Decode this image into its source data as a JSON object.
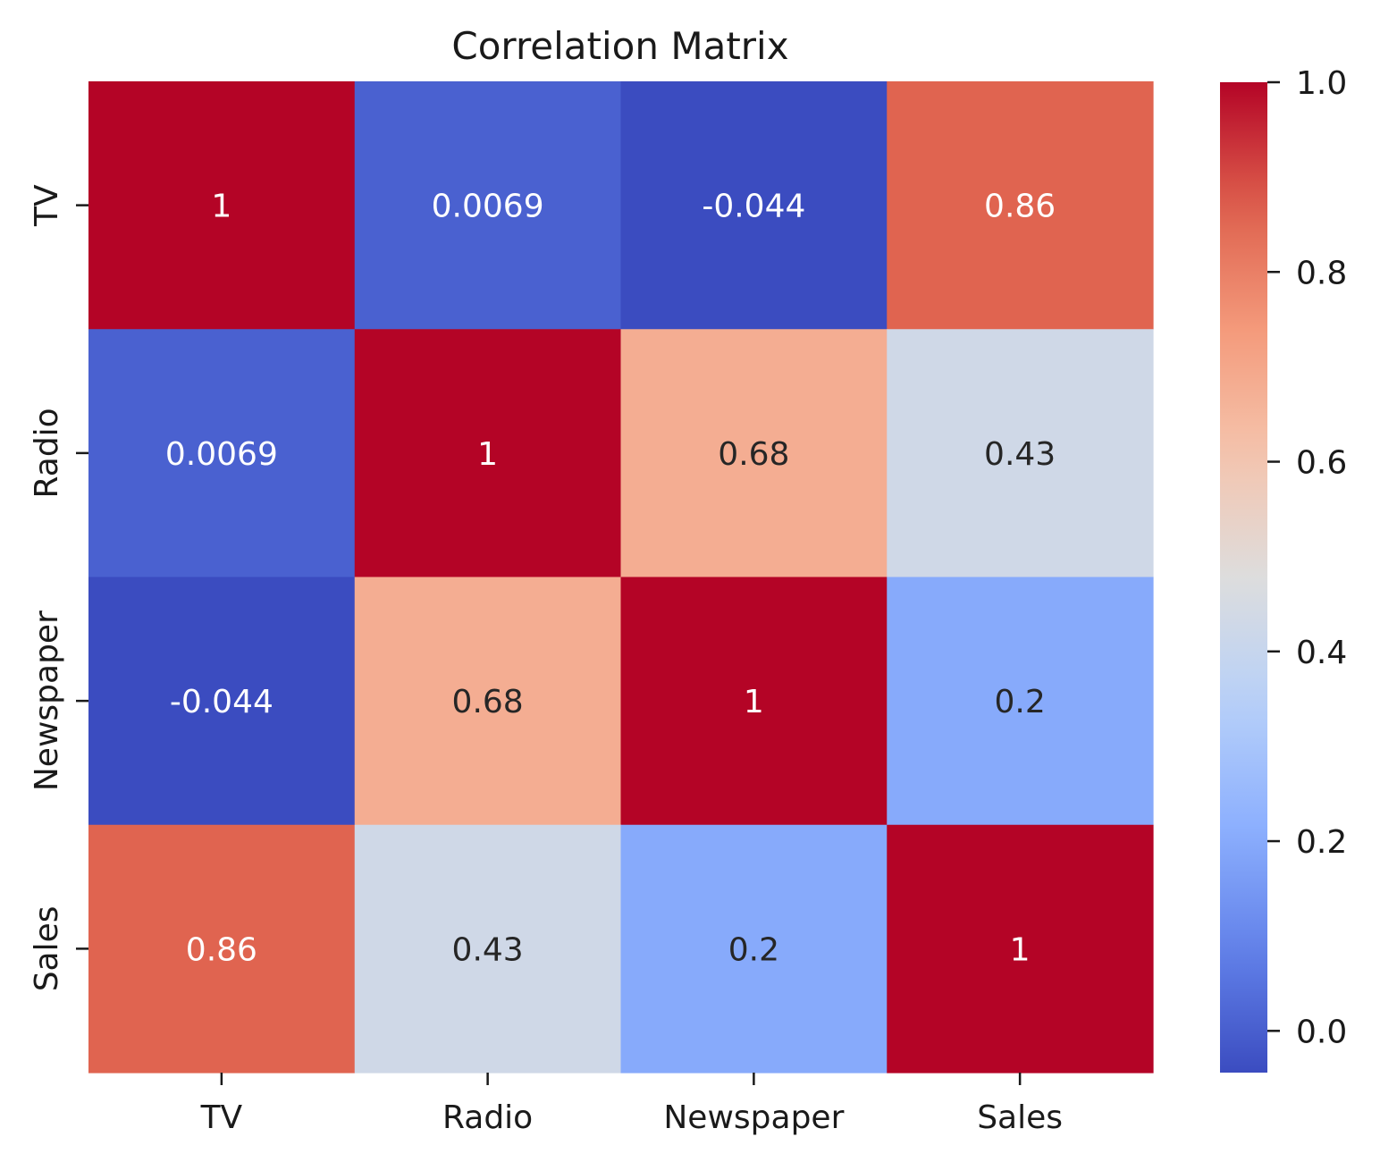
{
  "chart_data": {
    "type": "heatmap",
    "title": "Correlation Matrix",
    "xlabel": "",
    "ylabel": "",
    "x_categories": [
      "TV",
      "Radio",
      "Newspaper",
      "Sales"
    ],
    "y_categories": [
      "TV",
      "Radio",
      "Newspaper",
      "Sales"
    ],
    "values": [
      [
        1,
        0.0069,
        -0.044,
        0.86
      ],
      [
        0.0069,
        1,
        0.68,
        0.43
      ],
      [
        -0.044,
        0.68,
        1,
        0.2
      ],
      [
        0.86,
        0.43,
        0.2,
        1
      ]
    ],
    "annotations": [
      [
        "1",
        "0.0069",
        "-0.044",
        "0.86"
      ],
      [
        "0.0069",
        "1",
        "0.68",
        "0.43"
      ],
      [
        "-0.044",
        "0.68",
        "1",
        "0.2"
      ],
      [
        "0.86",
        "0.43",
        "0.2",
        "1"
      ]
    ],
    "colormap": "coolwarm",
    "colorbar": {
      "vmin": -0.044,
      "vmax": 1.0,
      "ticks": [
        0.0,
        0.2,
        0.4,
        0.6,
        0.8,
        1.0
      ],
      "tick_labels": [
        "0.0",
        "0.2",
        "0.4",
        "0.6",
        "0.8",
        "1.0"
      ]
    },
    "grid": false,
    "legend": "colorbar-right"
  }
}
